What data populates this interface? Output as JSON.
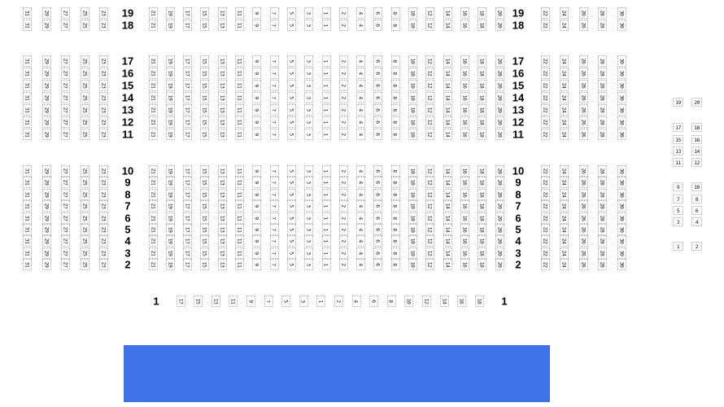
{
  "stage": {
    "color": "#4173e8",
    "label": ""
  },
  "seat_map": {
    "left_section_seats": [
      "31",
      "29",
      "27",
      "25",
      "23"
    ],
    "middle_section_seats": [
      "21",
      "19",
      "17",
      "15",
      "13",
      "11",
      "9",
      "7",
      "5",
      "3",
      "1",
      "2",
      "4",
      "6",
      "8",
      "10",
      "12",
      "14",
      "16",
      "18",
      "20"
    ],
    "right_section_seats": [
      "22",
      "24",
      "26",
      "28",
      "30"
    ],
    "blocks": [
      {
        "row_labels": [
          "19",
          "18"
        ]
      },
      {
        "row_labels": [
          "17",
          "16",
          "15",
          "14",
          "13",
          "12",
          "11"
        ]
      },
      {
        "row_labels": [
          "10",
          "9",
          "8",
          "7",
          "6",
          "5",
          "4",
          "3",
          "2"
        ]
      }
    ],
    "row_one": {
      "label": "1",
      "seats": [
        "17",
        "15",
        "13",
        "11",
        "9",
        "7",
        "5",
        "3",
        "1",
        "2",
        "4",
        "6",
        "8",
        "10",
        "12",
        "14",
        "16",
        "18"
      ]
    },
    "side_section": {
      "pairs": [
        [
          "19",
          "20"
        ],
        [
          "17",
          "18"
        ],
        [
          "15",
          "16"
        ],
        [
          "13",
          "14"
        ],
        [
          "11",
          "12"
        ],
        [
          "9",
          "10"
        ],
        [
          "7",
          "8"
        ],
        [
          "5",
          "6"
        ],
        [
          "3",
          "4"
        ],
        [
          "1",
          "2"
        ]
      ]
    }
  }
}
